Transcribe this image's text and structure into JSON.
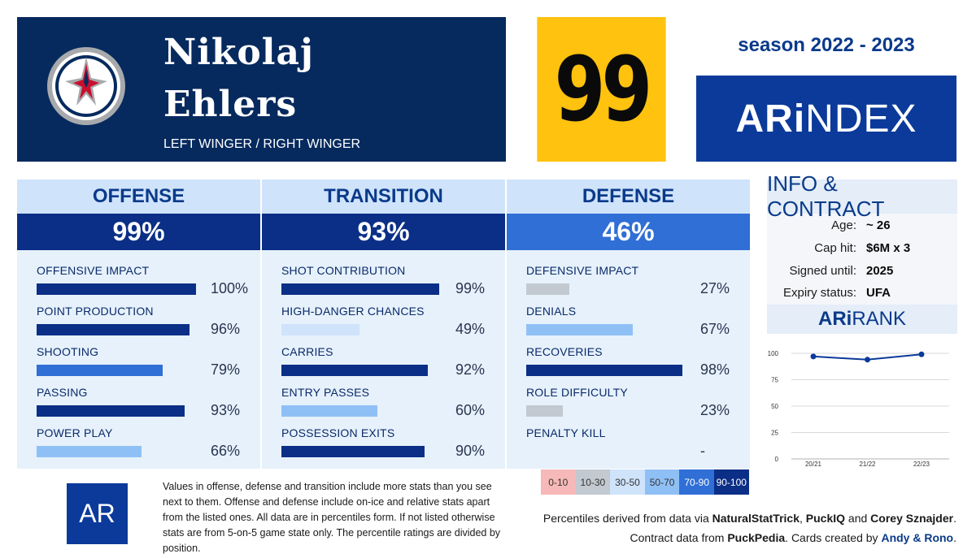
{
  "player": {
    "first_name": "Nikolaj",
    "last_name": "Ehlers",
    "position": "LEFT WINGER / RIGHT WINGER",
    "overall": "99",
    "logo_icon": "winnipeg-jets-logo"
  },
  "season": "season 2022 - 2023",
  "brand": {
    "strong": "ARi",
    "light": "NDEX"
  },
  "sections": [
    {
      "title": "OFFENSE",
      "score": "99%",
      "stats": [
        {
          "label": "OFFENSIVE IMPACT",
          "value": "100%",
          "pct": 100
        },
        {
          "label": "POINT PRODUCTION",
          "value": "96%",
          "pct": 96
        },
        {
          "label": "SHOOTING",
          "value": "79%",
          "pct": 79
        },
        {
          "label": "PASSING",
          "value": "93%",
          "pct": 93
        },
        {
          "label": "POWER PLAY",
          "value": "66%",
          "pct": 66
        }
      ]
    },
    {
      "title": "TRANSITION",
      "score": "93%",
      "stats": [
        {
          "label": "SHOT CONTRIBUTION",
          "value": "99%",
          "pct": 99
        },
        {
          "label": "HIGH-DANGER CHANCES",
          "value": "49%",
          "pct": 49
        },
        {
          "label": "CARRIES",
          "value": "92%",
          "pct": 92
        },
        {
          "label": "ENTRY PASSES",
          "value": "60%",
          "pct": 60
        },
        {
          "label": "POSSESSION EXITS",
          "value": "90%",
          "pct": 90
        }
      ]
    },
    {
      "title": "DEFENSE",
      "score": "46%",
      "stats": [
        {
          "label": "DEFENSIVE IMPACT",
          "value": "27%",
          "pct": 27
        },
        {
          "label": "DENIALS",
          "value": "67%",
          "pct": 67
        },
        {
          "label": "RECOVERIES",
          "value": "98%",
          "pct": 98
        },
        {
          "label": "ROLE DIFFICULTY",
          "value": "23%",
          "pct": 23
        },
        {
          "label": "PENALTY KILL",
          "value": "-",
          "pct": null
        }
      ]
    }
  ],
  "info": {
    "title": "INFO & CONTRACT",
    "rows": [
      {
        "key": "Age:",
        "value": "~ 26"
      },
      {
        "key": "Cap hit:",
        "value": "$6M x 3"
      },
      {
        "key": "Signed until:",
        "value": "2025"
      },
      {
        "key": "Expiry status:",
        "value": "UFA"
      }
    ]
  },
  "rank": {
    "title_strong": "ARi",
    "title_light": "RANK"
  },
  "chart_data": {
    "type": "line",
    "categories": [
      "20/21",
      "21/22",
      "22/23"
    ],
    "values": [
      97,
      94,
      99
    ],
    "yticks": [
      0,
      25,
      50,
      75,
      100
    ],
    "ylim": [
      0,
      100
    ],
    "grid": true,
    "color": "#0b3a9a"
  },
  "legend": [
    {
      "label": "0-10",
      "bg": "#f6b8b8",
      "fg": "#333333"
    },
    {
      "label": "10-30",
      "bg": "#c2c9d0",
      "fg": "#333333"
    },
    {
      "label": "30-50",
      "bg": "#cfe3fb",
      "fg": "#333333"
    },
    {
      "label": "50-70",
      "bg": "#8fc0f5",
      "fg": "#333333"
    },
    {
      "label": "70-90",
      "bg": "#2f6fd6",
      "fg": "#ffffff"
    },
    {
      "label": "90-100",
      "bg": "#0b2f86",
      "fg": "#ffffff"
    }
  ],
  "footer": {
    "badge": "AR",
    "note": "Values in offense, defense and transition include more stats than you see next to them. Offense and defense include on-ice and relative stats apart from the listed ones. All data are in percentiles form. If not listed otherwise stats are from 5-on-5 game state only. The percentile ratings are divided by position.",
    "credits1_pre": "Percentiles derived from data via ",
    "src1": "NaturalStatTrick",
    "sep1": ", ",
    "src2": "PuckIQ",
    "sep2": " and ",
    "src3": "Corey Sznajder",
    "end1": ".",
    "credits2_pre": "Contract data from ",
    "src4": "PuckPedia",
    "credits2_mid": ". Cards created by ",
    "authors": "Andy & Rono",
    "end2": "."
  }
}
